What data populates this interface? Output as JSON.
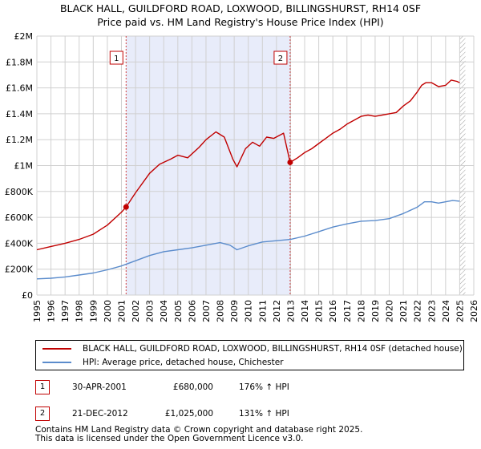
{
  "title_line1": "BLACK HALL, GUILDFORD ROAD, LOXWOOD, BILLINGSHURST, RH14 0SF",
  "title_line2": "Price paid vs. HM Land Registry's House Price Index (HPI)",
  "chart_data": {
    "type": "line",
    "title": "BLACK HALL, GUILDFORD ROAD, LOXWOOD, BILLINGSHURST, RH14 0SF",
    "subtitle": "Price paid vs. HM Land Registry's House Price Index (HPI)",
    "xlim": [
      1995,
      2026
    ],
    "ylim": [
      0,
      2000000
    ],
    "y_ticks": [
      0,
      200000,
      400000,
      600000,
      800000,
      1000000,
      1200000,
      1400000,
      1600000,
      1800000,
      2000000
    ],
    "y_tick_labels": [
      "£0",
      "£200K",
      "£400K",
      "£600K",
      "£800K",
      "£1M",
      "£1.2M",
      "£1.4M",
      "£1.6M",
      "£1.8M",
      "£2M"
    ],
    "x_ticks": [
      1995,
      1996,
      1997,
      1998,
      1999,
      2000,
      2001,
      2002,
      2003,
      2004,
      2005,
      2006,
      2007,
      2008,
      2009,
      2010,
      2011,
      2012,
      2013,
      2014,
      2015,
      2016,
      2017,
      2018,
      2019,
      2020,
      2021,
      2022,
      2023,
      2024,
      2025,
      2026
    ],
    "x_tick_labels": [
      "1995",
      "1996",
      "1997",
      "1998",
      "1999",
      "2000",
      "2001",
      "2002",
      "2003",
      "2004",
      "2005",
      "2006",
      "2007",
      "2008",
      "2009",
      "2010",
      "2011",
      "2012",
      "2013",
      "2014",
      "2015",
      "2016",
      "2017",
      "2018",
      "2019",
      "2020",
      "2021",
      "2022",
      "2023",
      "2024",
      "2025",
      "2026"
    ],
    "grid": true,
    "shaded_period": [
      2001.33,
      2012.97
    ],
    "forecast_hatch_start": 2025.0,
    "series": [
      {
        "name": "BLACK HALL, GUILDFORD ROAD, LOXWOOD, BILLINGSHURST, RH14 0SF (detached house)",
        "color": "#c00000",
        "x": [
          1995.0,
          1996.0,
          1997.0,
          1998.0,
          1999.0,
          2000.0,
          2001.0,
          2001.33,
          2002.0,
          2003.0,
          2003.7,
          2004.5,
          2005.0,
          2005.7,
          2006.5,
          2007.0,
          2007.7,
          2008.3,
          2008.9,
          2009.2,
          2009.8,
          2010.3,
          2010.8,
          2011.3,
          2011.8,
          2012.5,
          2012.97,
          2013.5,
          2014.0,
          2014.5,
          2015.0,
          2015.5,
          2016.0,
          2016.5,
          2017.0,
          2017.5,
          2018.0,
          2018.5,
          2019.0,
          2019.5,
          2020.0,
          2020.5,
          2021.0,
          2021.5,
          2022.0,
          2022.3,
          2022.6,
          2023.0,
          2023.5,
          2024.0,
          2024.4,
          2024.8,
          2025.0
        ],
        "values": [
          350000,
          375000,
          400000,
          430000,
          470000,
          540000,
          640000,
          680000,
          790000,
          940000,
          1010000,
          1050000,
          1080000,
          1060000,
          1140000,
          1200000,
          1260000,
          1220000,
          1050000,
          990000,
          1130000,
          1180000,
          1150000,
          1220000,
          1210000,
          1250000,
          1025000,
          1060000,
          1100000,
          1130000,
          1170000,
          1210000,
          1250000,
          1280000,
          1320000,
          1350000,
          1380000,
          1390000,
          1380000,
          1390000,
          1400000,
          1410000,
          1460000,
          1500000,
          1570000,
          1620000,
          1640000,
          1640000,
          1610000,
          1620000,
          1660000,
          1650000,
          1640000
        ]
      },
      {
        "name": "HPI: Average price, detached house, Chichester",
        "color": "#5b8ccc",
        "x": [
          1995.0,
          1996.0,
          1997.0,
          1998.0,
          1999.0,
          2000.0,
          2001.0,
          2002.0,
          2003.0,
          2004.0,
          2005.0,
          2006.0,
          2007.0,
          2008.0,
          2008.7,
          2009.2,
          2010.0,
          2011.0,
          2012.0,
          2013.0,
          2014.0,
          2015.0,
          2016.0,
          2017.0,
          2018.0,
          2019.0,
          2020.0,
          2021.0,
          2022.0,
          2022.5,
          2023.0,
          2023.5,
          2024.0,
          2024.5,
          2025.0
        ],
        "values": [
          125000,
          130000,
          140000,
          155000,
          170000,
          195000,
          225000,
          265000,
          305000,
          335000,
          350000,
          365000,
          385000,
          405000,
          385000,
          350000,
          380000,
          410000,
          420000,
          430000,
          455000,
          490000,
          525000,
          550000,
          570000,
          575000,
          590000,
          630000,
          680000,
          720000,
          720000,
          710000,
          720000,
          730000,
          725000
        ]
      }
    ],
    "annotations": [
      {
        "label": "1",
        "x": 2001.33,
        "y": 680000
      },
      {
        "label": "2",
        "x": 2012.97,
        "y": 1025000
      }
    ]
  },
  "legend": {
    "property": "BLACK HALL, GUILDFORD ROAD, LOXWOOD, BILLINGSHURST, RH14 0SF (detached house)",
    "hpi": "HPI: Average price, detached house, Chichester"
  },
  "transactions": [
    {
      "num": "1",
      "date": "30-APR-2001",
      "price": "£680,000",
      "hpi": "176% ↑ HPI"
    },
    {
      "num": "2",
      "date": "21-DEC-2012",
      "price": "£1,025,000",
      "hpi": "131% ↑ HPI"
    }
  ],
  "footer_line1": "Contains HM Land Registry data © Crown copyright and database right 2025.",
  "footer_line2": "This data is licensed under the Open Government Licence v3.0."
}
